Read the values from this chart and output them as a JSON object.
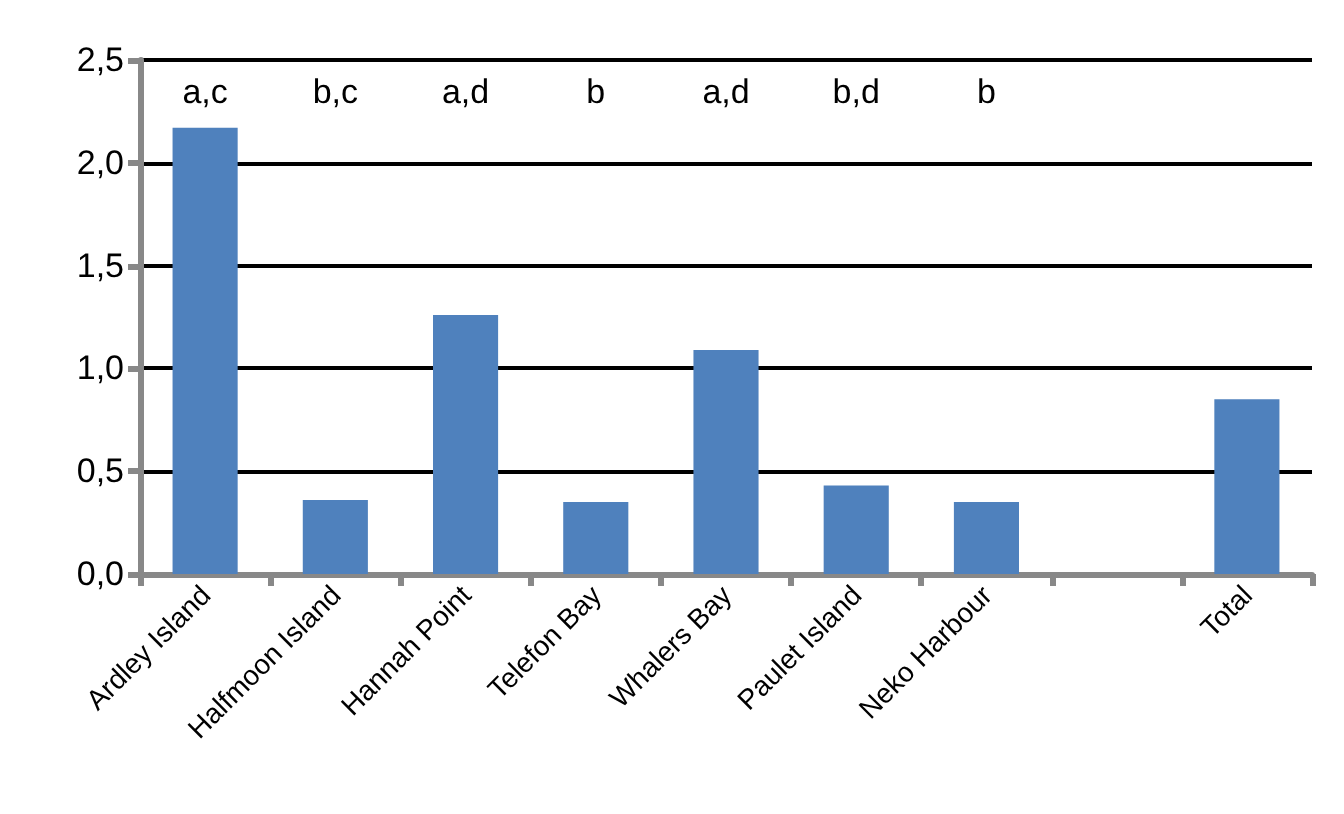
{
  "chart_data": {
    "type": "bar",
    "categories": [
      "Ardley Island",
      "Halfmoon Island",
      "Hannah Point",
      "Telefon Bay",
      "Whalers Bay",
      "Paulet Island",
      "Neko Harbour",
      null,
      "Total"
    ],
    "values": [
      2.17,
      0.36,
      1.26,
      0.35,
      1.09,
      0.43,
      0.35,
      null,
      0.85
    ],
    "color": "#4f81bd",
    "ylim": [
      0,
      2.5
    ],
    "yticks": [
      {
        "value": 0,
        "label": "0,0"
      },
      {
        "value": 0.5,
        "label": "0,5"
      },
      {
        "value": 1,
        "label": "1,0"
      },
      {
        "value": 1.5,
        "label": "1,5"
      },
      {
        "value": 2,
        "label": "2,0"
      },
      {
        "value": 2.5,
        "label": "2,5"
      }
    ],
    "grid": "y",
    "annotations": [
      "a,c",
      "b,c",
      "a,d",
      "b",
      "a,d",
      "b,d",
      "b"
    ]
  }
}
